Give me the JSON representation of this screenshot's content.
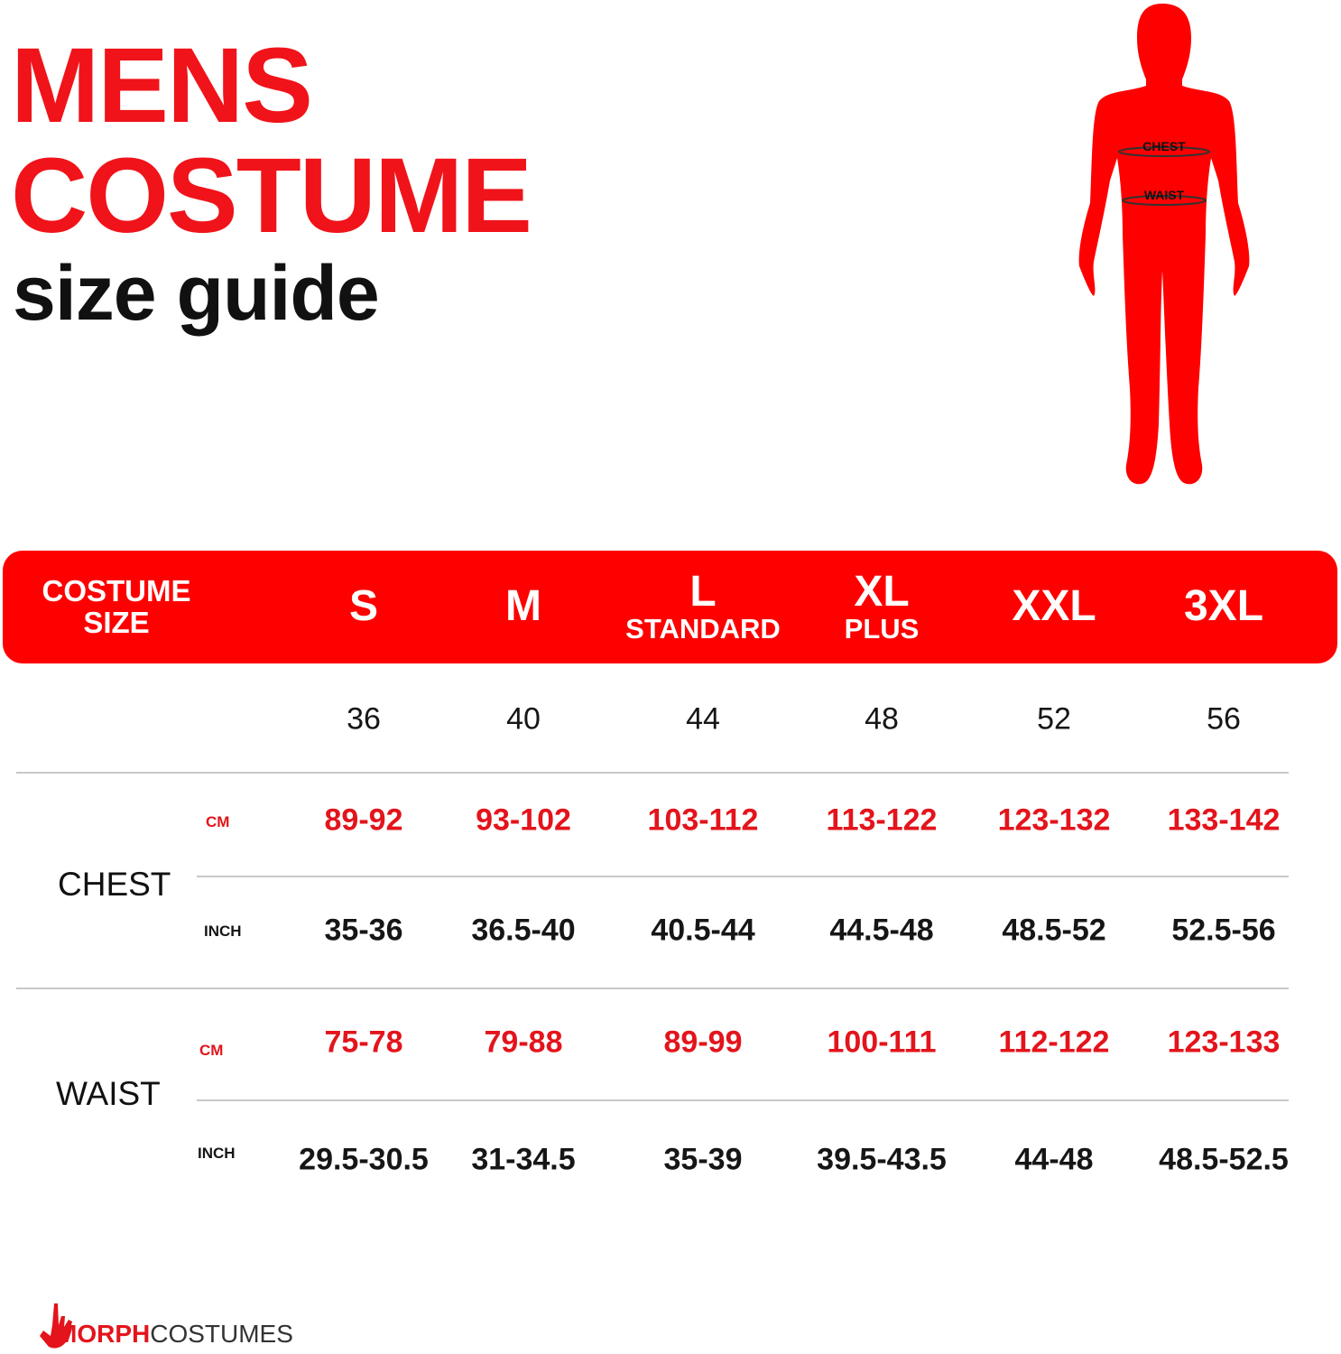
{
  "title": {
    "line1": "MENS",
    "line2": "COSTUME",
    "line3": "size guide"
  },
  "figure": {
    "chest_label": "CHEST",
    "waist_label": "WAIST"
  },
  "colors": {
    "brand_red": "#ff0000",
    "value_red": "#e3141c"
  },
  "table": {
    "header": {
      "first": [
        "COSTUME",
        "SIZE"
      ],
      "sizes": [
        {
          "size": "S",
          "sub": ""
        },
        {
          "size": "M",
          "sub": ""
        },
        {
          "size": "L",
          "sub": "STANDARD"
        },
        {
          "size": "XL",
          "sub": "PLUS"
        },
        {
          "size": "XXL",
          "sub": ""
        },
        {
          "size": "3XL",
          "sub": ""
        }
      ]
    },
    "numeric_sizes": [
      "36",
      "40",
      "44",
      "48",
      "52",
      "56"
    ],
    "chest": {
      "label": "CHEST",
      "cm_label": "CM",
      "inch_label": "INCH",
      "cm": [
        "89-92",
        "93-102",
        "103-112",
        "113-122",
        "123-132",
        "133-142"
      ],
      "inch": [
        "35-36",
        "36.5-40",
        "40.5-44",
        "44.5-48",
        "48.5-52",
        "52.5-56"
      ]
    },
    "waist": {
      "label": "WAIST",
      "cm_label": "CM",
      "inch_label": "INCH",
      "cm": [
        "75-78",
        "79-88",
        "89-99",
        "100-111",
        "112-122",
        "123-133"
      ],
      "inch": [
        "29.5-30.5",
        "31-34.5",
        "35-39",
        "39.5-43.5",
        "44-48",
        "48.5-52.5"
      ]
    }
  },
  "logo": {
    "part1": "MORPH",
    "part2": "COSTUMES"
  }
}
